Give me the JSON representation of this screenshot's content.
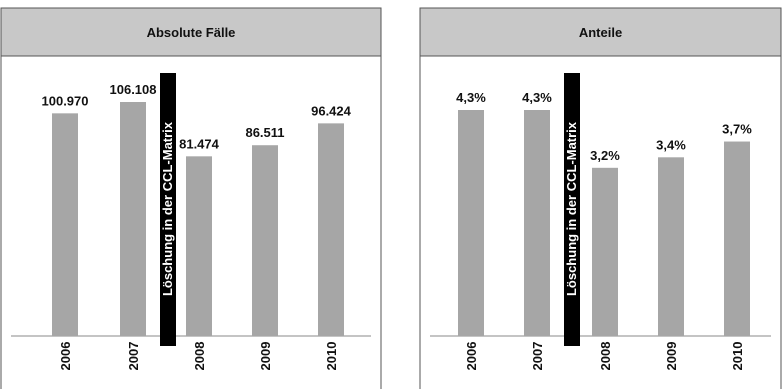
{
  "chart_data": [
    {
      "type": "bar",
      "title": "Absolute Fälle",
      "categories": [
        "2006",
        "2007",
        "2008",
        "2009",
        "2010"
      ],
      "values": [
        100970,
        106108,
        81474,
        86511,
        96424
      ],
      "value_labels": [
        "100.970",
        "106.108",
        "81.474",
        "86.511",
        "96.424"
      ],
      "color": "#a6a6a6",
      "annotation": "Löschung in der CCL-Matrix"
    },
    {
      "type": "bar",
      "title": "Anteile",
      "categories": [
        "2006",
        "2007",
        "2008",
        "2009",
        "2010"
      ],
      "values": [
        4.3,
        4.3,
        3.2,
        3.4,
        3.7
      ],
      "value_labels": [
        "4,3%",
        "4,3%",
        "3,2%",
        "3,4%",
        "3,7%"
      ],
      "color": "#a6a6a6",
      "annotation": "Löschung in der CCL-Matrix"
    }
  ]
}
